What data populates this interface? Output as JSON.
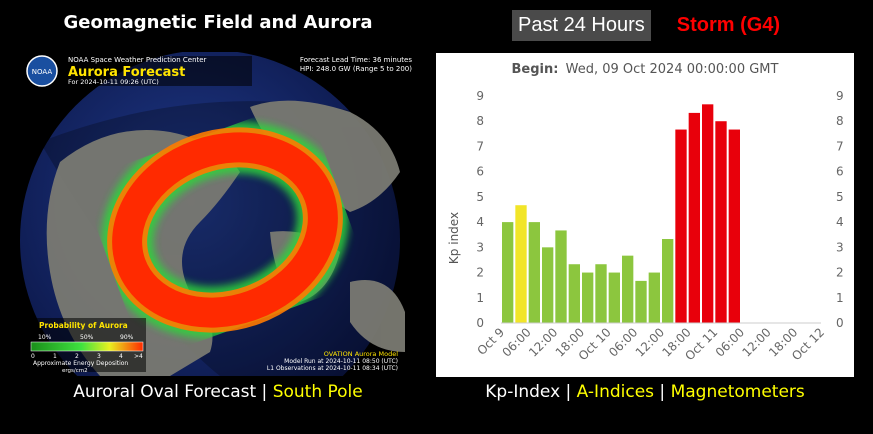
{
  "header": {
    "left_title": "Geomagnetic Field and Aurora",
    "past_button": "Past 24 Hours",
    "storm_label": "Storm (G4)"
  },
  "aurora_map": {
    "logo_text": "NOAA",
    "center": "NOAA Space Weather Prediction Center",
    "product_title": "Aurora Forecast",
    "for_time": "For 2024-10-11 09:26 (UTC)",
    "lead_time": "Forecast Lead Time:  36 minutes",
    "hpi": "HPI: 248.0 GW (Range 5 to 200)",
    "legend_title": "Probability of Aurora",
    "legend_pcts": [
      "10%",
      "50%",
      "90%"
    ],
    "legend_ticks": [
      "0",
      "1",
      "2",
      "3",
      "4",
      ">4"
    ],
    "legend_caption1": "Approximate Energy Deposition",
    "legend_caption2": "ergs/cm2",
    "model_name": "OVATION Aurora Model",
    "model_run": "Model Run at 2024-10-11 08:50 (UTC)",
    "l1_obs": "L1 Observations at 2024-10-11 08:34 (UTC)"
  },
  "chart_data": {
    "type": "bar",
    "title": "Begin: Wed, 09 Oct 2024 00:00:00 GMT",
    "title_prefix": "Begin:",
    "title_value": "Wed, 09 Oct 2024 00:00:00 GMT",
    "ylabel": "Kp index",
    "ylim": [
      0,
      9
    ],
    "yticks": [
      "0",
      "1",
      "2",
      "3",
      "4",
      "5",
      "6",
      "7",
      "8",
      "9"
    ],
    "xtick_labels": [
      "Oct 9",
      "06:00",
      "12:00",
      "18:00",
      "Oct 10",
      "06:00",
      "12:00",
      "18:00",
      "Oct 11",
      "06:00",
      "12:00",
      "18:00",
      "Oct 12"
    ],
    "values": [
      4.0,
      4.67,
      4.0,
      3.0,
      3.67,
      2.33,
      2.0,
      2.33,
      2.0,
      2.67,
      1.67,
      2.0,
      3.33,
      7.67,
      8.33,
      8.67,
      8.0,
      7.67
    ],
    "color_thresholds": {
      "green": "<4.5",
      "yellow": "4.5-5",
      "red": ">=7"
    },
    "colors": {
      "green": "#8cc63e",
      "yellow": "#f2e528",
      "red": "#e8000b"
    },
    "grid": false
  },
  "footer": {
    "left_text": "Auroral Oval Forecast",
    "left_sep": " | ",
    "left_link": "South Pole",
    "kp_link": "Kp-Index",
    "sep": " | ",
    "a_link": "A-Indices",
    "mag_link": "Magnetometers"
  }
}
